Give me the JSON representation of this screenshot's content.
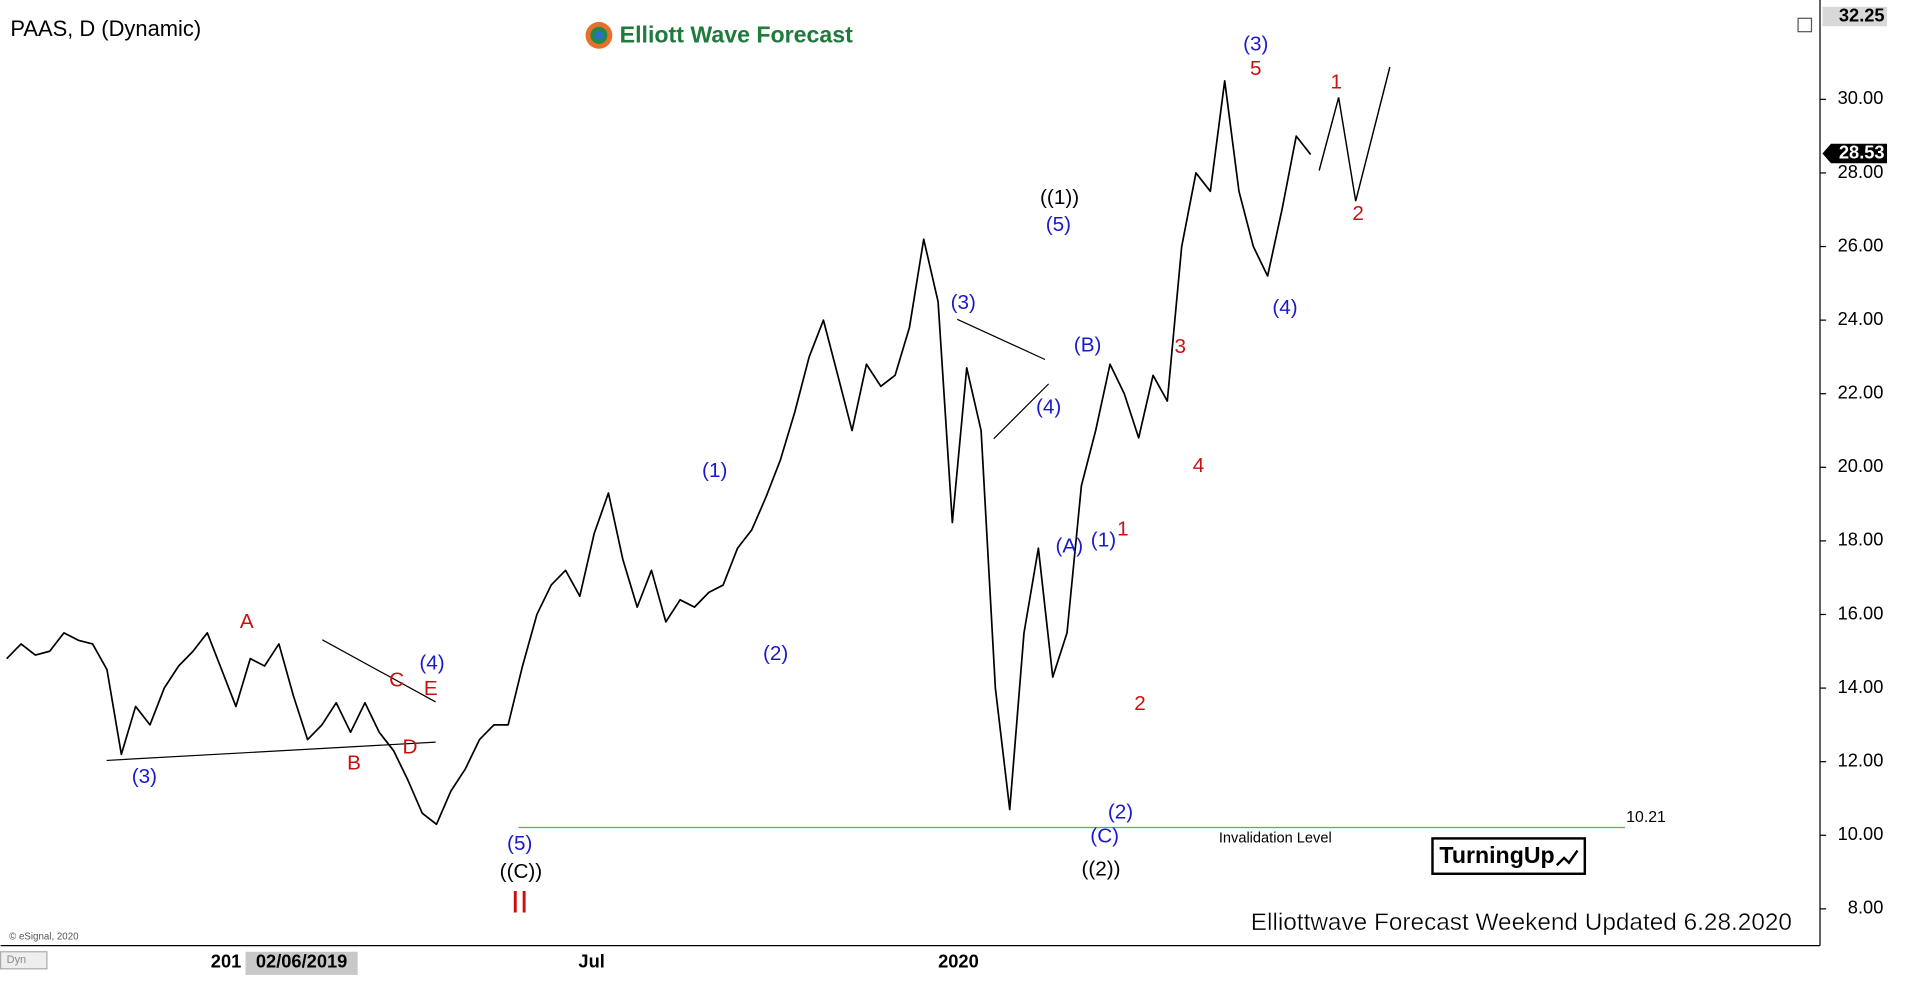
{
  "chart_data": {
    "type": "line",
    "title": "PAAS, D (Dynamic)",
    "brand": "Elliott Wave Forecast",
    "footer": "Elliottwave Forecast Weekend Updated 6.28.2020",
    "copyright": "© eSignal, 2020",
    "badge": "TurningUp",
    "mode": "Dyn",
    "x_labels": [
      "201",
      "02/06/2019",
      "Jul",
      "2020"
    ],
    "series": [
      {
        "name": "PAAS",
        "color": "#000000",
        "values": [
          14.8,
          15.2,
          14.9,
          15.0,
          15.5,
          15.3,
          15.2,
          14.5,
          12.2,
          13.5,
          13.0,
          14.0,
          14.6,
          15.0,
          15.5,
          14.5,
          13.5,
          14.8,
          14.6,
          15.2,
          13.8,
          12.6,
          13.0,
          13.6,
          12.8,
          13.6,
          12.8,
          12.3,
          11.5,
          10.6,
          10.3,
          11.2,
          11.8,
          12.6,
          13.0,
          13.0,
          14.6,
          16.0,
          16.8,
          17.2,
          16.5,
          18.2,
          19.3,
          17.5,
          16.2,
          17.2,
          15.8,
          16.4,
          16.2,
          16.6,
          16.8,
          17.8,
          18.3,
          19.2,
          20.2,
          21.5,
          23.0,
          24.0,
          22.5,
          21.0,
          22.8,
          22.2,
          22.5,
          23.8,
          26.2,
          24.5,
          18.5,
          22.7,
          21.0,
          14.0,
          10.7,
          15.5,
          17.8,
          14.3,
          15.5,
          19.5,
          21.0,
          22.8,
          22.0,
          20.8,
          22.5,
          21.8,
          26.0,
          28.0,
          27.5,
          30.5,
          27.5,
          26.0,
          25.2,
          27.0,
          29.0,
          28.5
        ]
      }
    ],
    "ylim": [
      7,
      32.7
    ],
    "yticks": [
      {
        "value": 8,
        "label": "8.00"
      },
      {
        "value": 10,
        "label": "10.00"
      },
      {
        "value": 12,
        "label": "12.00"
      },
      {
        "value": 14,
        "label": "14.00"
      },
      {
        "value": 16,
        "label": "16.00"
      },
      {
        "value": 18,
        "label": "18.00"
      },
      {
        "value": 20,
        "label": "20.00"
      },
      {
        "value": 22,
        "label": "22.00"
      },
      {
        "value": 24,
        "label": "24.00"
      },
      {
        "value": 26,
        "label": "26.00"
      },
      {
        "value": 28,
        "label": "28.00"
      },
      {
        "value": 30,
        "label": "30.00"
      }
    ],
    "high_marker": 32.25,
    "last_price": 28.53,
    "invalidation": {
      "value": 10.21,
      "text": "Invalidation Level",
      "color": "#33cc33"
    },
    "annotations": [
      {
        "text": "(3)",
        "color": "#1a1acc"
      },
      {
        "text": "A",
        "color": "#cc1010"
      },
      {
        "text": "B",
        "color": "#cc1010"
      },
      {
        "text": "C",
        "color": "#cc1010"
      },
      {
        "text": "D",
        "color": "#cc1010"
      },
      {
        "text": "E",
        "color": "#cc1010"
      },
      {
        "text": "(4)",
        "color": "#1a1acc"
      },
      {
        "text": "(5)",
        "color": "#1a1acc"
      },
      {
        "text": "((C))",
        "color": "#000000"
      },
      {
        "text": "II",
        "color": "#cc1010"
      },
      {
        "text": "(1)",
        "color": "#1a1acc"
      },
      {
        "text": "(2)",
        "color": "#1a1acc"
      },
      {
        "text": "(3)",
        "color": "#1a1acc"
      },
      {
        "text": "(4)",
        "color": "#1a1acc"
      },
      {
        "text": "((1))",
        "color": "#000000"
      },
      {
        "text": "(5)",
        "color": "#1a1acc"
      },
      {
        "text": "(B)",
        "color": "#1a1acc"
      },
      {
        "text": "(A)",
        "color": "#1a1acc"
      },
      {
        "text": "(1)",
        "color": "#1a1acc"
      },
      {
        "text": "1",
        "color": "#cc1010"
      },
      {
        "text": "2",
        "color": "#cc1010"
      },
      {
        "text": "(2)",
        "color": "#1a1acc"
      },
      {
        "text": "(C)",
        "color": "#1a1acc"
      },
      {
        "text": "((2))",
        "color": "#000000"
      },
      {
        "text": "3",
        "color": "#cc1010"
      },
      {
        "text": "4",
        "color": "#cc1010"
      },
      {
        "text": "(3)",
        "color": "#1a1acc"
      },
      {
        "text": "5",
        "color": "#cc1010"
      },
      {
        "text": "(4)",
        "color": "#1a1acc"
      },
      {
        "text": "1",
        "color": "#cc1010"
      },
      {
        "text": "2",
        "color": "#cc1010"
      }
    ]
  }
}
